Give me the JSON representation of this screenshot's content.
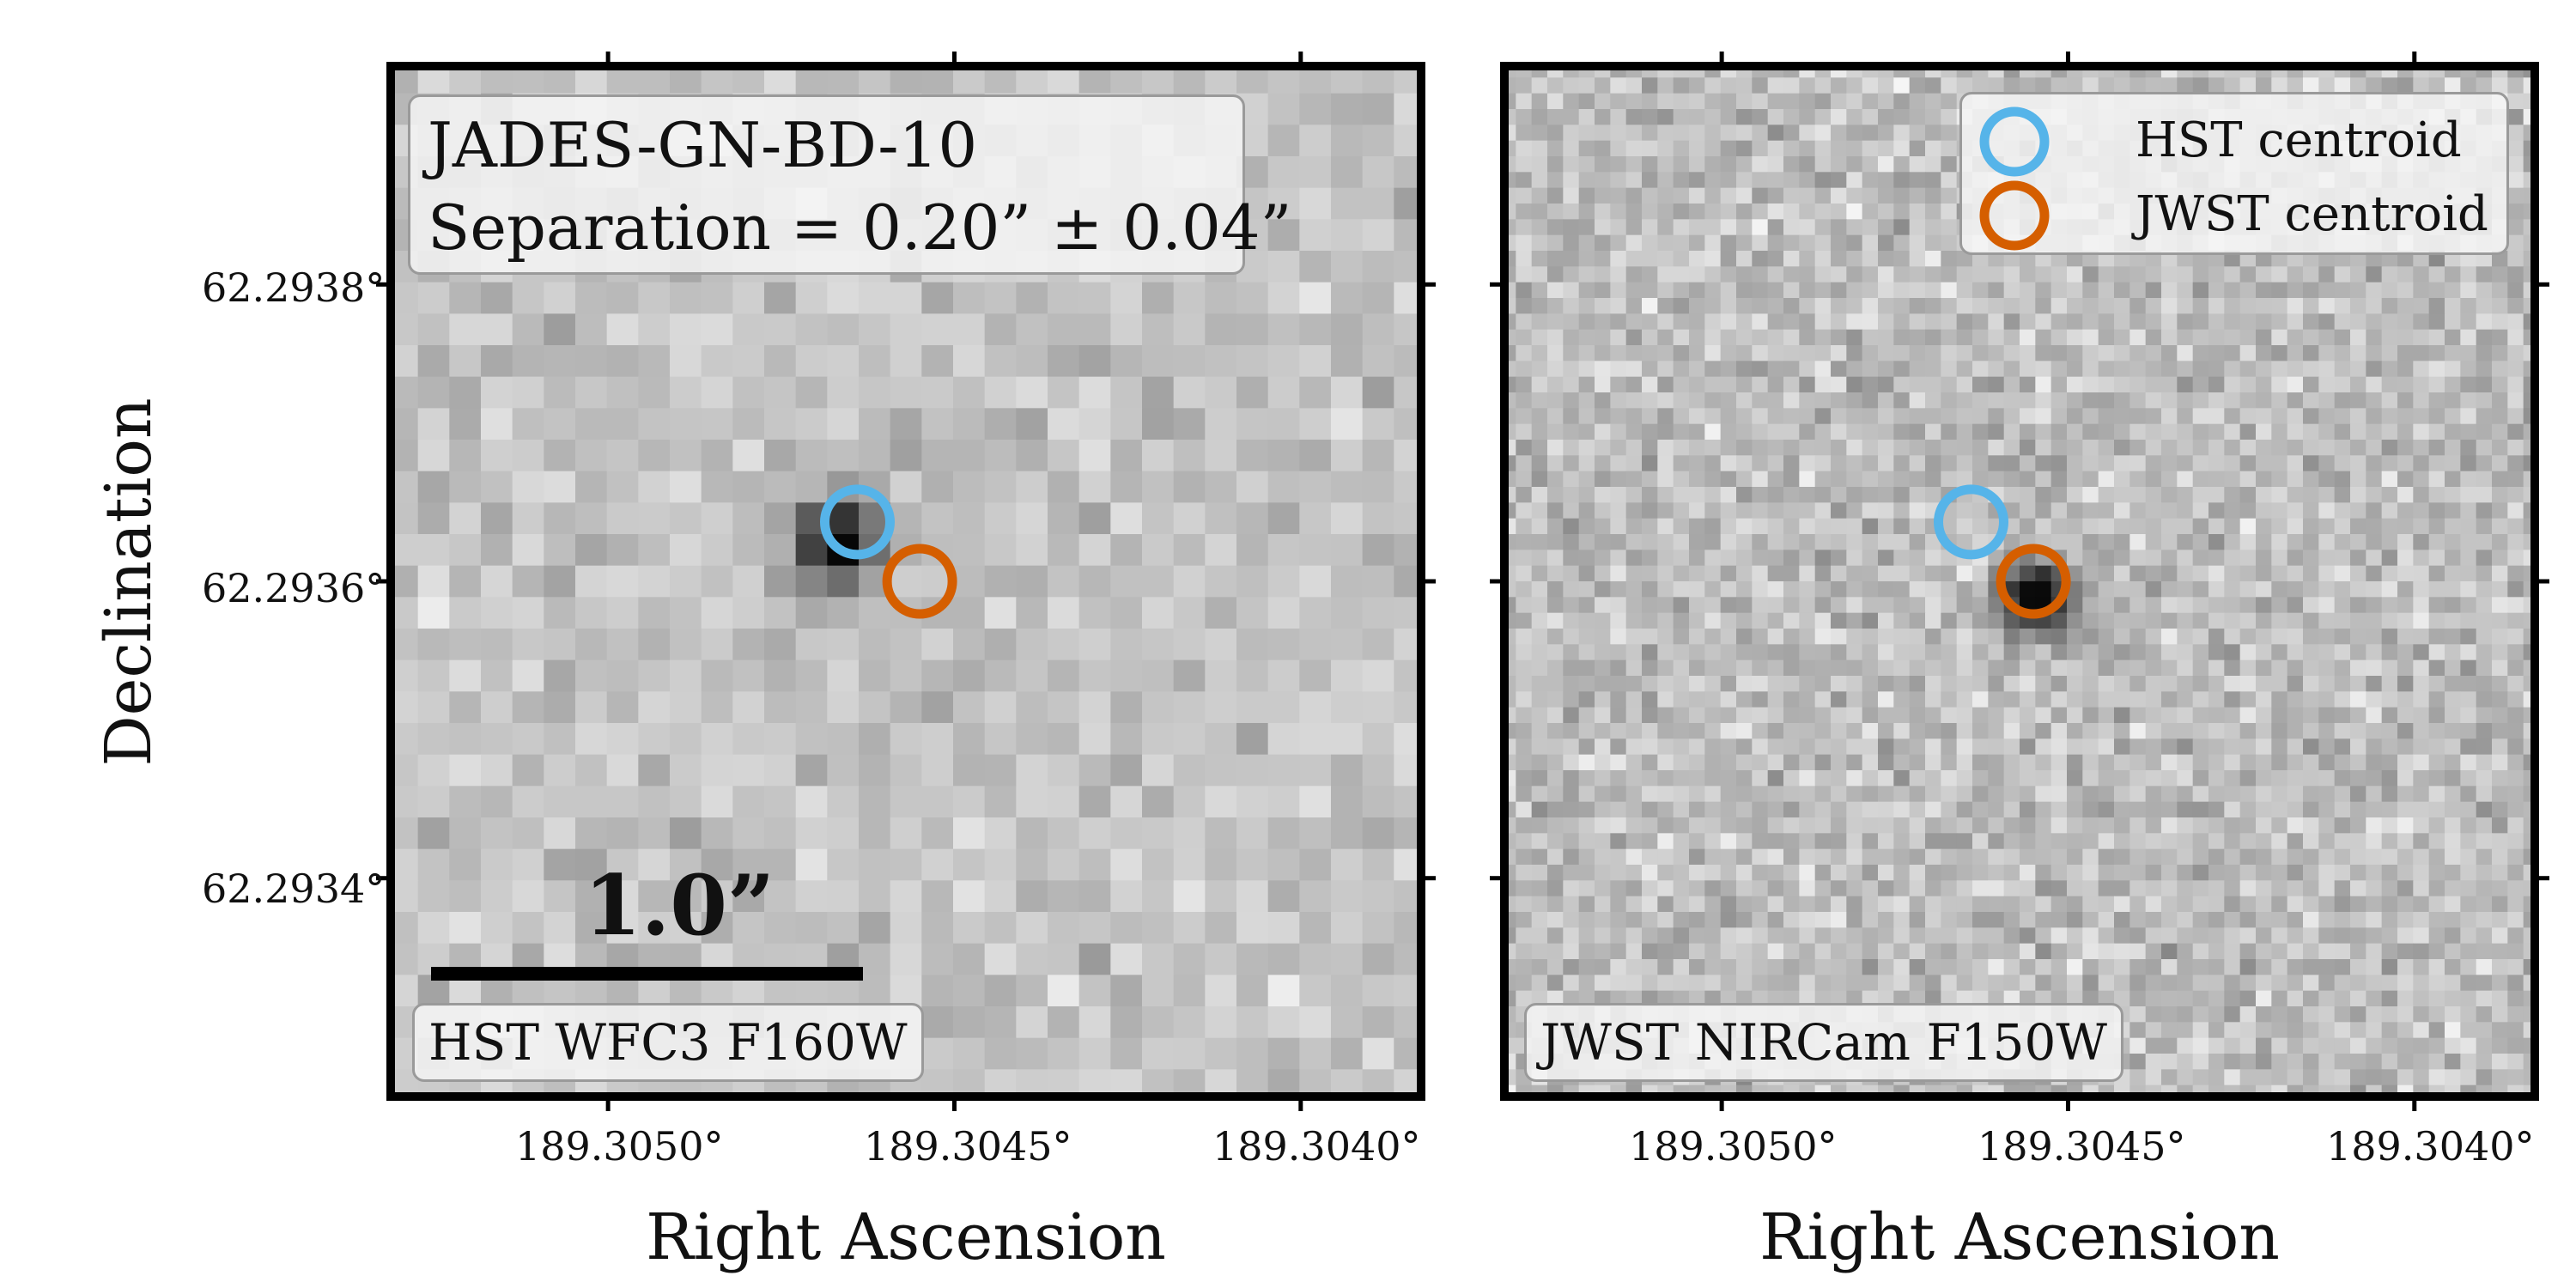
{
  "chart_data": {
    "type": "image-panels",
    "object_name": "JADES-GN-BD-10",
    "separation_text": "Separation = 0.20” ± 0.04”",
    "separation_arcsec": 0.2,
    "separation_error_arcsec": 0.04,
    "ylabel": "Declination",
    "y_tick_labels": [
      "62.2938°",
      "62.2936°",
      "62.2934°"
    ],
    "y_ticks_deg": [
      62.2938,
      62.2936,
      62.2934
    ],
    "scalebar_label": "1.0”",
    "scalebar_arcsec": 1.0,
    "legend": [
      {
        "label": "HST centroid",
        "color": "#56b4e9"
      },
      {
        "label": "JWST centroid",
        "color": "#d55e00"
      }
    ],
    "panels": [
      {
        "instrument": "HST WFC3 F160W",
        "xlabel": "Right Ascension",
        "x_tick_labels": [
          "189.3050°",
          "189.3045°",
          "189.3040°"
        ],
        "x_ticks_deg": [
          189.305,
          189.3045,
          189.304
        ],
        "pixel_grid": 33,
        "source_pixel": [
          14.3,
          15.2
        ]
      },
      {
        "instrument": "JWST NIRCam F150W",
        "xlabel": "Right Ascension",
        "x_tick_labels": [
          "189.3050°",
          "189.3045°",
          "189.3040°"
        ],
        "x_ticks_deg": [
          189.305,
          189.3045,
          189.304
        ],
        "pixel_grid": 66,
        "source_pixel": [
          34.0,
          34.0
        ]
      }
    ],
    "centroids": {
      "hst": {
        "ra_deg": 189.30464,
        "dec_deg": 62.29364
      },
      "jwst": {
        "ra_deg": 189.30455,
        "dec_deg": 62.2936
      }
    },
    "axes": {
      "ra_range_deg": [
        189.30532,
        189.30382
      ],
      "dec_range_deg": [
        62.29325,
        62.29395
      ]
    },
    "colors": {
      "hst": "#56b4e9",
      "jwst": "#d55e00",
      "frame": "#000000"
    }
  }
}
